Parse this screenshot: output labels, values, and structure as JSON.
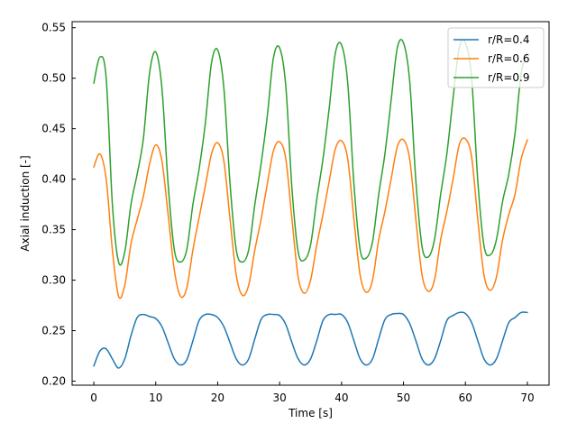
{
  "chart_data": {
    "type": "line",
    "title": "",
    "xlabel": "Time [s]",
    "ylabel": "Axial induction [-]",
    "xlim": [
      -3.5,
      73.5
    ],
    "ylim": [
      0.196,
      0.556
    ],
    "xticks": [
      0,
      10,
      20,
      30,
      40,
      50,
      60,
      70
    ],
    "xtick_labels": [
      "0",
      "10",
      "20",
      "30",
      "40",
      "50",
      "60",
      "70"
    ],
    "yticks": [
      0.2,
      0.25,
      0.3,
      0.35,
      0.4,
      0.45,
      0.5,
      0.55
    ],
    "ytick_labels": [
      "0.20",
      "0.25",
      "0.30",
      "0.35",
      "0.40",
      "0.45",
      "0.50",
      "0.55"
    ],
    "grid": false,
    "legend_position": "top-right",
    "series": [
      {
        "name": "r/R=0.4",
        "color": "#1f77b4",
        "x": [
          0,
          1,
          2,
          3,
          4,
          5,
          6,
          7,
          8,
          9,
          10,
          11,
          12,
          13,
          14,
          15,
          16,
          17,
          18,
          19,
          20,
          21,
          22,
          23,
          24,
          25,
          26,
          27,
          28,
          29,
          30,
          31,
          32,
          33,
          34,
          35,
          36,
          37,
          38,
          39,
          40,
          41,
          42,
          43,
          44,
          45,
          46,
          47,
          48,
          49,
          50,
          51,
          52,
          53,
          54,
          55,
          56,
          57,
          58,
          59,
          60,
          61,
          62,
          63,
          64,
          65,
          66,
          67,
          68,
          69,
          70
        ],
        "values": [
          0.215,
          0.23,
          0.232,
          0.222,
          0.213,
          0.222,
          0.245,
          0.263,
          0.266,
          0.264,
          0.262,
          0.254,
          0.238,
          0.222,
          0.216,
          0.221,
          0.24,
          0.26,
          0.266,
          0.266,
          0.263,
          0.254,
          0.238,
          0.222,
          0.216,
          0.222,
          0.242,
          0.261,
          0.266,
          0.266,
          0.265,
          0.256,
          0.238,
          0.222,
          0.216,
          0.222,
          0.24,
          0.26,
          0.266,
          0.266,
          0.266,
          0.258,
          0.24,
          0.222,
          0.216,
          0.222,
          0.242,
          0.261,
          0.266,
          0.267,
          0.266,
          0.257,
          0.24,
          0.222,
          0.216,
          0.222,
          0.24,
          0.26,
          0.265,
          0.268,
          0.267,
          0.258,
          0.24,
          0.222,
          0.216,
          0.222,
          0.24,
          0.258,
          0.263,
          0.268,
          0.268
        ]
      },
      {
        "name": "r/R=0.6",
        "color": "#ff7f0e",
        "x": [
          0,
          1,
          2,
          3,
          4,
          5,
          6,
          7,
          8,
          9,
          10,
          11,
          12,
          13,
          14,
          15,
          16,
          17,
          18,
          19,
          20,
          21,
          22,
          23,
          24,
          25,
          26,
          27,
          28,
          29,
          30,
          31,
          32,
          33,
          34,
          35,
          36,
          37,
          38,
          39,
          40,
          41,
          42,
          43,
          44,
          45,
          46,
          47,
          48,
          49,
          50,
          51,
          52,
          53,
          54,
          55,
          56,
          57,
          58,
          59,
          60,
          61,
          62,
          63,
          64,
          65,
          66,
          67,
          68,
          69,
          70
        ],
        "values": [
          0.412,
          0.425,
          0.4,
          0.33,
          0.284,
          0.295,
          0.336,
          0.36,
          0.383,
          0.415,
          0.434,
          0.418,
          0.365,
          0.31,
          0.284,
          0.292,
          0.33,
          0.362,
          0.393,
          0.425,
          0.436,
          0.418,
          0.36,
          0.305,
          0.285,
          0.295,
          0.33,
          0.36,
          0.395,
          0.428,
          0.437,
          0.42,
          0.36,
          0.303,
          0.287,
          0.3,
          0.335,
          0.365,
          0.398,
          0.43,
          0.438,
          0.42,
          0.36,
          0.305,
          0.288,
          0.3,
          0.34,
          0.368,
          0.4,
          0.432,
          0.439,
          0.42,
          0.36,
          0.305,
          0.289,
          0.3,
          0.34,
          0.368,
          0.4,
          0.434,
          0.44,
          0.422,
          0.36,
          0.305,
          0.29,
          0.303,
          0.34,
          0.365,
          0.385,
          0.42,
          0.439
        ]
      },
      {
        "name": "r/R=0.9",
        "color": "#2ca02c",
        "x": [
          0,
          1,
          2,
          3,
          4,
          5,
          6,
          7,
          8,
          9,
          10,
          11,
          12,
          13,
          14,
          15,
          16,
          17,
          18,
          19,
          20,
          21,
          22,
          23,
          24,
          25,
          26,
          27,
          28,
          29,
          30,
          31,
          32,
          33,
          34,
          35,
          36,
          37,
          38,
          39,
          40,
          41,
          42,
          43,
          44,
          45,
          46,
          47,
          48,
          49,
          50,
          51,
          52,
          53,
          54,
          55,
          56,
          57,
          58,
          59,
          60,
          61,
          62,
          63,
          64,
          65,
          66,
          67,
          68,
          69,
          70
        ],
        "values": [
          0.495,
          0.521,
          0.5,
          0.375,
          0.318,
          0.328,
          0.375,
          0.405,
          0.44,
          0.505,
          0.526,
          0.49,
          0.395,
          0.33,
          0.318,
          0.33,
          0.375,
          0.41,
          0.455,
          0.515,
          0.528,
          0.49,
          0.395,
          0.33,
          0.318,
          0.33,
          0.375,
          0.415,
          0.462,
          0.52,
          0.53,
          0.492,
          0.39,
          0.328,
          0.32,
          0.335,
          0.38,
          0.42,
          0.47,
          0.525,
          0.533,
          0.495,
          0.395,
          0.33,
          0.322,
          0.338,
          0.385,
          0.425,
          0.478,
          0.53,
          0.535,
          0.497,
          0.398,
          0.333,
          0.323,
          0.34,
          0.385,
          0.425,
          0.48,
          0.53,
          0.535,
          0.5,
          0.398,
          0.334,
          0.325,
          0.34,
          0.378,
          0.405,
          0.445,
          0.505,
          0.525
        ]
      }
    ]
  }
}
